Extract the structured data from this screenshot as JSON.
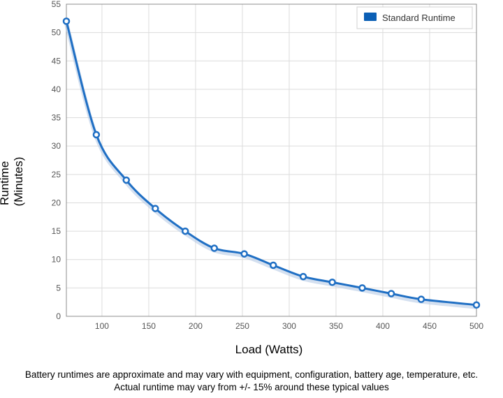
{
  "chart_data": {
    "type": "line",
    "series": [
      {
        "name": "Standard Runtime",
        "color": "#1f6fc4",
        "x": [
          62,
          94,
          126,
          157,
          189,
          220,
          252,
          283,
          315,
          346,
          378,
          409,
          441,
          500
        ],
        "y": [
          52,
          32,
          24,
          19,
          15,
          12,
          11,
          9,
          7,
          6,
          5,
          4,
          3,
          2
        ]
      }
    ],
    "xlabel": "Load (Watts)",
    "ylabel_lines": [
      "Runtime",
      "(Minutes)"
    ],
    "xlim": [
      62,
      500
    ],
    "ylim": [
      0,
      55
    ],
    "x_ticks": [
      100,
      150,
      200,
      250,
      300,
      350,
      400,
      450,
      500
    ],
    "y_ticks": [
      0,
      5,
      10,
      15,
      20,
      25,
      30,
      35,
      40,
      45,
      50,
      55
    ],
    "grid": true,
    "legend_position": "top-right",
    "legend_swatch_color": "#0b5fb5"
  },
  "footnote": {
    "line1": "Battery runtimes are approximate and may vary with equipment, configuration, battery age, temperature, etc.",
    "line2": "Actual runtime may vary from +/- 15% around these typical values"
  }
}
